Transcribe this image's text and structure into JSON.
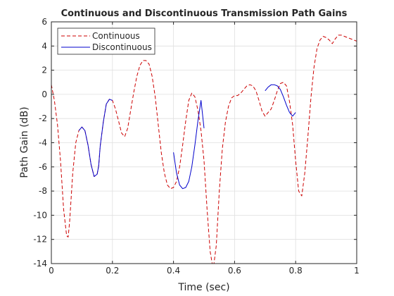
{
  "chart_data": {
    "type": "line",
    "title": "Continuous and Discontinuous Transmission Path Gains",
    "xlabel": "Time (sec)",
    "ylabel": "Path Gain (dB)",
    "xlim": [
      0,
      1
    ],
    "ylim": [
      -14,
      6
    ],
    "xticks": [
      "0",
      "0.2",
      "0.4",
      "0.6",
      "0.8",
      "1"
    ],
    "yticks": [
      "-14",
      "-12",
      "-10",
      "-8",
      "-6",
      "-4",
      "-2",
      "0",
      "2",
      "4",
      "6"
    ],
    "grid": true,
    "legend_position": "top-left",
    "series": [
      {
        "name": "Continuous",
        "color": "#cc0000",
        "style": "dashed",
        "x": [
          0,
          0.01,
          0.02,
          0.03,
          0.04,
          0.05,
          0.055,
          0.06,
          0.07,
          0.08,
          0.09,
          0.1,
          0.11,
          0.12,
          0.13,
          0.14,
          0.15,
          0.155,
          0.16,
          0.17,
          0.18,
          0.19,
          0.2,
          0.21,
          0.22,
          0.23,
          0.24,
          0.25,
          0.26,
          0.27,
          0.28,
          0.29,
          0.3,
          0.31,
          0.32,
          0.33,
          0.34,
          0.35,
          0.36,
          0.37,
          0.38,
          0.39,
          0.4,
          0.41,
          0.42,
          0.43,
          0.44,
          0.45,
          0.46,
          0.47,
          0.48,
          0.49,
          0.5,
          0.51,
          0.52,
          0.53,
          0.54,
          0.55,
          0.56,
          0.57,
          0.58,
          0.59,
          0.6,
          0.61,
          0.62,
          0.63,
          0.64,
          0.65,
          0.66,
          0.67,
          0.68,
          0.69,
          0.7,
          0.71,
          0.72,
          0.73,
          0.74,
          0.75,
          0.76,
          0.77,
          0.78,
          0.79,
          0.8,
          0.81,
          0.82,
          0.83,
          0.84,
          0.85,
          0.86,
          0.87,
          0.88,
          0.89,
          0.9,
          0.91,
          0.92,
          0.93,
          0.94,
          0.95,
          0.96,
          0.97,
          0.98,
          0.99,
          1.0
        ],
        "y": [
          0.8,
          -0.5,
          -2.5,
          -5.5,
          -9.5,
          -11.7,
          -11.8,
          -10.5,
          -6.5,
          -4.0,
          -3.0,
          -2.7,
          -3.0,
          -4.2,
          -5.8,
          -6.8,
          -6.6,
          -5.9,
          -4.3,
          -2.3,
          -0.8,
          -0.4,
          -0.5,
          -1.2,
          -2.2,
          -3.2,
          -3.5,
          -2.8,
          -1.3,
          0.2,
          1.5,
          2.4,
          2.8,
          2.8,
          2.5,
          1.5,
          -0.2,
          -2.5,
          -4.8,
          -6.5,
          -7.5,
          -7.8,
          -7.7,
          -7.2,
          -6.0,
          -4.2,
          -2.2,
          -0.5,
          0.1,
          -0.2,
          -1.3,
          -3.0,
          -5.5,
          -9.5,
          -13.0,
          -14.5,
          -12.5,
          -8.0,
          -4.5,
          -2.3,
          -1.0,
          -0.3,
          -0.1,
          -0.1,
          0.1,
          0.4,
          0.7,
          0.8,
          0.7,
          0.3,
          -0.5,
          -1.4,
          -1.8,
          -1.5,
          -1.2,
          -0.5,
          0.3,
          0.9,
          1.0,
          0.7,
          -0.6,
          -2.5,
          -5.5,
          -8.0,
          -8.4,
          -6.5,
          -3.5,
          -0.3,
          2.2,
          3.8,
          4.5,
          4.8,
          4.7,
          4.5,
          4.2,
          4.6,
          4.9,
          4.9,
          4.8,
          4.7,
          4.6,
          4.5,
          4.4
        ]
      },
      {
        "name": "Discontinuous",
        "color": "#0000cc",
        "style": "solid",
        "segments": [
          {
            "x": [
              0.09,
              0.1,
              0.11,
              0.12,
              0.13,
              0.14,
              0.15,
              0.155,
              0.16,
              0.17,
              0.18,
              0.19,
              0.2
            ],
            "y": [
              -3.0,
              -2.7,
              -3.0,
              -4.2,
              -5.8,
              -6.8,
              -6.6,
              -5.9,
              -4.3,
              -2.3,
              -0.8,
              -0.4,
              -0.5
            ]
          },
          {
            "x": [
              0.4,
              0.41,
              0.42,
              0.43,
              0.44,
              0.45,
              0.46,
              0.47,
              0.48,
              0.49,
              0.5
            ],
            "y": [
              -4.8,
              -6.5,
              -7.5,
              -7.8,
              -7.7,
              -7.2,
              -6.0,
              -4.2,
              -2.2,
              -0.5,
              -2.8
            ]
          },
          {
            "x": [
              0.7,
              0.71,
              0.72,
              0.73,
              0.74,
              0.75,
              0.76,
              0.77,
              0.78,
              0.79,
              0.8
            ],
            "y": [
              0.3,
              0.6,
              0.8,
              0.8,
              0.7,
              0.4,
              -0.2,
              -0.9,
              -1.5,
              -1.8,
              -1.5
            ]
          }
        ]
      }
    ]
  }
}
